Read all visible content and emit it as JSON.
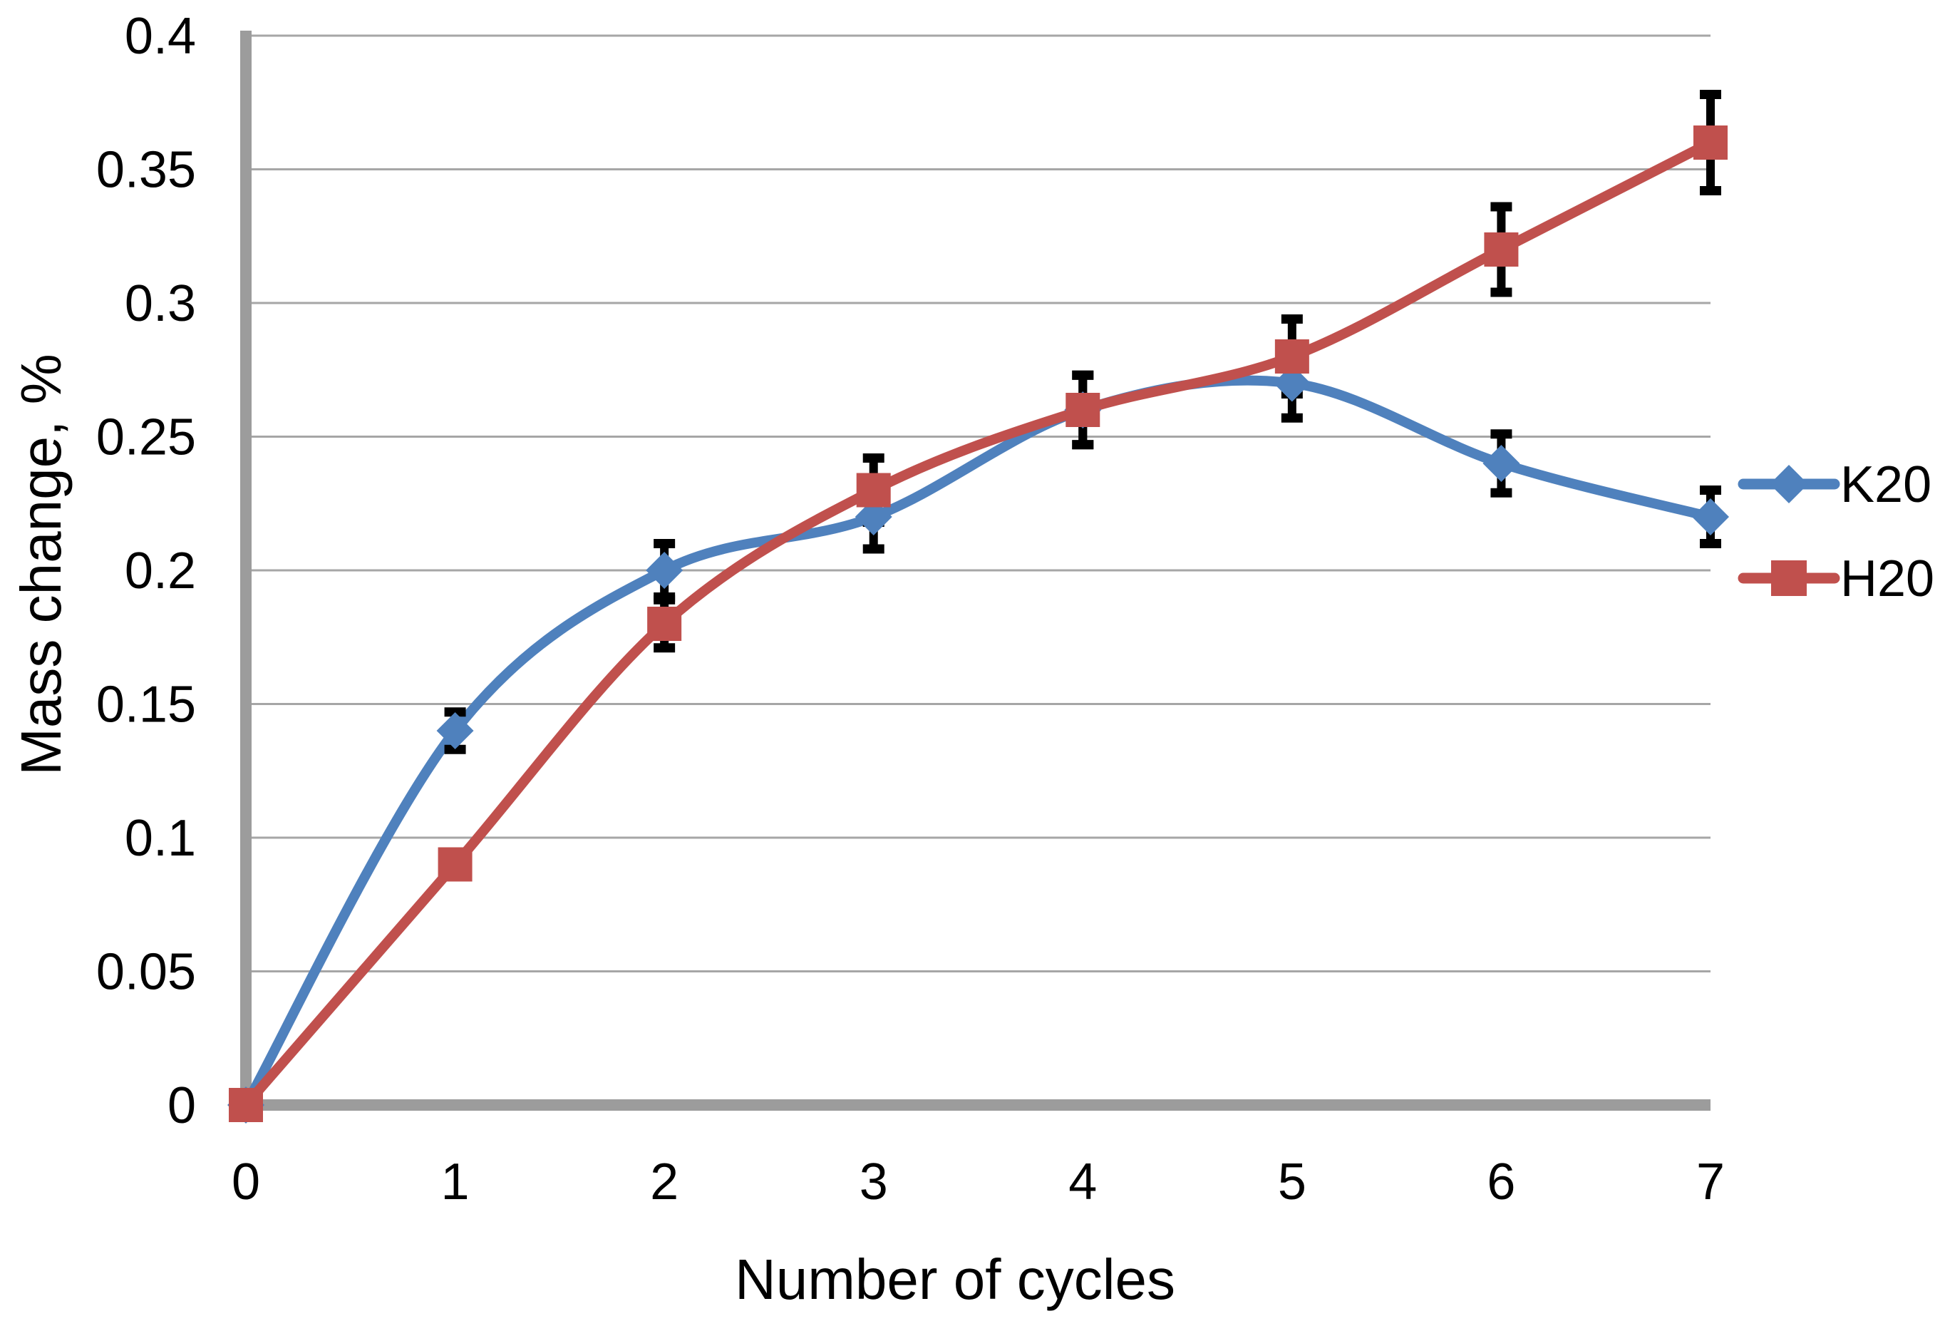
{
  "chart_data": {
    "type": "line",
    "title": "",
    "xlabel": "Number of cycles",
    "ylabel": "Mass change, %",
    "x": [
      0,
      1,
      2,
      3,
      4,
      5,
      6,
      7
    ],
    "xtick_labels": [
      "0",
      "1",
      "2",
      "3",
      "4",
      "5",
      "6",
      "7"
    ],
    "ytick_labels": [
      "0",
      "0.05",
      "0.1",
      "0.15",
      "0.2",
      "0.25",
      "0.3",
      "0.35",
      "0.4"
    ],
    "xlim": [
      0,
      7
    ],
    "ylim": [
      0,
      0.4
    ],
    "ytick_step": 0.05,
    "grid": "horizontal-only",
    "legend_position": "right-middle",
    "series": [
      {
        "name": "K20",
        "color": "#4F81BD",
        "marker": "diamond",
        "smooth": true,
        "values": [
          0,
          0.14,
          0.2,
          0.22,
          0.26,
          0.27,
          0.24,
          0.22
        ],
        "error_bars": [
          0,
          0.007,
          0.01,
          0.012,
          0.013,
          0.013,
          0.011,
          0.01
        ]
      },
      {
        "name": "H20",
        "color": "#C0504D",
        "marker": "square",
        "smooth": true,
        "values": [
          0,
          0.09,
          0.18,
          0.23,
          0.26,
          0.28,
          0.32,
          0.36
        ],
        "error_bars": [
          0,
          0,
          0.009,
          0.012,
          0.013,
          0.014,
          0.016,
          0.018
        ]
      }
    ],
    "styles": {
      "axis_color": "#9C9C9C",
      "gridline_color": "#A6A6A6",
      "error_bar_color": "#000000",
      "text_color": "#000000",
      "background": "#FFFFFF"
    }
  }
}
